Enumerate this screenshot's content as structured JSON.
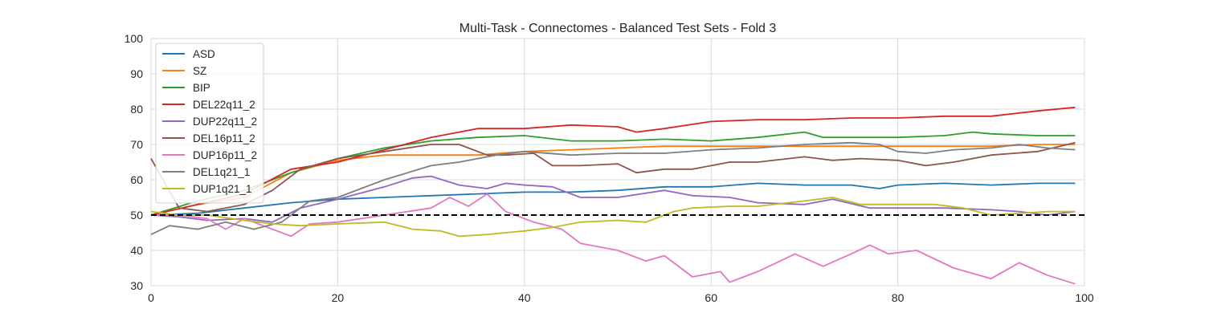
{
  "chart_data": {
    "type": "line",
    "title": "Multi-Task - Connectomes - Balanced Test Sets - Fold 3",
    "xlabel": "",
    "ylabel": "",
    "xlim": [
      0,
      100
    ],
    "ylim": [
      30,
      100
    ],
    "xticks": [
      "0",
      "20",
      "40",
      "60",
      "80",
      "100"
    ],
    "yticks": [
      "30",
      "40",
      "50",
      "60",
      "70",
      "80",
      "90",
      "100"
    ],
    "grid": true,
    "legend_position": "upper-left",
    "reference_line": {
      "y": 50,
      "style": "dashed",
      "color": "#000000"
    },
    "series": [
      {
        "name": "ASD",
        "color": "#1f77b4",
        "points": [
          [
            0,
            50
          ],
          [
            5,
            50.5
          ],
          [
            10,
            52
          ],
          [
            15,
            53.5
          ],
          [
            20,
            54.5
          ],
          [
            25,
            55
          ],
          [
            30,
            55.5
          ],
          [
            35,
            56
          ],
          [
            40,
            56.5
          ],
          [
            45,
            56.5
          ],
          [
            50,
            57
          ],
          [
            55,
            58
          ],
          [
            60,
            58
          ],
          [
            65,
            59
          ],
          [
            70,
            58.5
          ],
          [
            75,
            58.5
          ],
          [
            78,
            57.5
          ],
          [
            80,
            58.5
          ],
          [
            85,
            59
          ],
          [
            90,
            58.5
          ],
          [
            95,
            59
          ],
          [
            99,
            59
          ]
        ]
      },
      {
        "name": "SZ",
        "color": "#ff7f0e",
        "points": [
          [
            0,
            50
          ],
          [
            5,
            53
          ],
          [
            10,
            55
          ],
          [
            15,
            62
          ],
          [
            20,
            65.5
          ],
          [
            25,
            67
          ],
          [
            30,
            67
          ],
          [
            35,
            67
          ],
          [
            40,
            68
          ],
          [
            45,
            68.5
          ],
          [
            50,
            69
          ],
          [
            55,
            69.5
          ],
          [
            60,
            69.5
          ],
          [
            65,
            69.5
          ],
          [
            70,
            69.5
          ],
          [
            75,
            69.5
          ],
          [
            80,
            69.5
          ],
          [
            85,
            69.5
          ],
          [
            90,
            69.5
          ],
          [
            95,
            70
          ],
          [
            99,
            70
          ]
        ]
      },
      {
        "name": "BIP",
        "color": "#2ca02c",
        "points": [
          [
            0,
            50
          ],
          [
            5,
            54
          ],
          [
            10,
            57
          ],
          [
            15,
            62
          ],
          [
            20,
            66
          ],
          [
            25,
            69
          ],
          [
            30,
            71
          ],
          [
            35,
            72
          ],
          [
            40,
            72.5
          ],
          [
            45,
            71
          ],
          [
            50,
            71
          ],
          [
            55,
            71.5
          ],
          [
            60,
            71
          ],
          [
            65,
            72
          ],
          [
            70,
            73.5
          ],
          [
            72,
            72
          ],
          [
            75,
            72
          ],
          [
            80,
            72
          ],
          [
            85,
            72.5
          ],
          [
            88,
            73.5
          ],
          [
            90,
            73
          ],
          [
            95,
            72.5
          ],
          [
            99,
            72.5
          ]
        ]
      },
      {
        "name": "DEL22q11_2",
        "color": "#d62728",
        "points": [
          [
            0,
            50
          ],
          [
            5,
            53
          ],
          [
            10,
            56
          ],
          [
            15,
            63
          ],
          [
            20,
            65
          ],
          [
            25,
            68.5
          ],
          [
            30,
            72
          ],
          [
            35,
            74.5
          ],
          [
            40,
            74.5
          ],
          [
            45,
            75.5
          ],
          [
            50,
            75
          ],
          [
            52,
            73.5
          ],
          [
            55,
            74.5
          ],
          [
            60,
            76.5
          ],
          [
            65,
            77
          ],
          [
            70,
            77
          ],
          [
            75,
            77.5
          ],
          [
            80,
            77.5
          ],
          [
            85,
            78
          ],
          [
            90,
            78
          ],
          [
            95,
            79.5
          ],
          [
            99,
            80.5
          ]
        ]
      },
      {
        "name": "DUP22q11_2",
        "color": "#9467bd",
        "points": [
          [
            0,
            50
          ],
          [
            3,
            49.5
          ],
          [
            6,
            48.5
          ],
          [
            10,
            49
          ],
          [
            13,
            48
          ],
          [
            16,
            52
          ],
          [
            20,
            54.5
          ],
          [
            25,
            58
          ],
          [
            28,
            60.5
          ],
          [
            30,
            61
          ],
          [
            33,
            58.5
          ],
          [
            36,
            57.5
          ],
          [
            38,
            59
          ],
          [
            40,
            58.5
          ],
          [
            43,
            58
          ],
          [
            46,
            55
          ],
          [
            50,
            55
          ],
          [
            55,
            57
          ],
          [
            58,
            55.5
          ],
          [
            62,
            55
          ],
          [
            65,
            53.5
          ],
          [
            70,
            53
          ],
          [
            73,
            54.5
          ],
          [
            77,
            52
          ],
          [
            80,
            52
          ],
          [
            85,
            52
          ],
          [
            90,
            51.5
          ],
          [
            93,
            51
          ],
          [
            96,
            50
          ],
          [
            99,
            51
          ]
        ]
      },
      {
        "name": "DEL16p11_2",
        "color": "#8c564b",
        "points": [
          [
            0,
            66
          ],
          [
            3,
            52
          ],
          [
            6,
            51
          ],
          [
            10,
            53
          ],
          [
            13,
            57
          ],
          [
            16,
            63
          ],
          [
            20,
            66
          ],
          [
            25,
            68
          ],
          [
            30,
            70
          ],
          [
            33,
            70
          ],
          [
            36,
            67
          ],
          [
            38,
            67
          ],
          [
            41,
            67.5
          ],
          [
            43,
            64
          ],
          [
            46,
            64
          ],
          [
            50,
            64.5
          ],
          [
            52,
            62
          ],
          [
            55,
            63
          ],
          [
            58,
            63
          ],
          [
            62,
            65
          ],
          [
            65,
            65
          ],
          [
            70,
            66.5
          ],
          [
            73,
            65.5
          ],
          [
            76,
            66
          ],
          [
            80,
            65.5
          ],
          [
            83,
            64
          ],
          [
            86,
            65
          ],
          [
            90,
            67
          ],
          [
            95,
            68
          ],
          [
            99,
            70.5
          ]
        ]
      },
      {
        "name": "DUP16p11_2",
        "color": "#e377c2",
        "points": [
          [
            0,
            50
          ],
          [
            3,
            50
          ],
          [
            6,
            49
          ],
          [
            8,
            46
          ],
          [
            10,
            49
          ],
          [
            12,
            47
          ],
          [
            15,
            44
          ],
          [
            17,
            47.5
          ],
          [
            20,
            48
          ],
          [
            25,
            50
          ],
          [
            30,
            52
          ],
          [
            32,
            55
          ],
          [
            34,
            52.5
          ],
          [
            36,
            56
          ],
          [
            38,
            51
          ],
          [
            41,
            48
          ],
          [
            44,
            46
          ],
          [
            46,
            42
          ],
          [
            50,
            40
          ],
          [
            53,
            37
          ],
          [
            55,
            38.5
          ],
          [
            58,
            32.5
          ],
          [
            61,
            34
          ],
          [
            62,
            31
          ],
          [
            65,
            34
          ],
          [
            69,
            39
          ],
          [
            72,
            35.5
          ],
          [
            75,
            39
          ],
          [
            77,
            41.5
          ],
          [
            79,
            39
          ],
          [
            82,
            40
          ],
          [
            86,
            35
          ],
          [
            90,
            32
          ],
          [
            93,
            36.5
          ],
          [
            96,
            33
          ],
          [
            99,
            30.5
          ]
        ]
      },
      {
        "name": "DEL1q21_1",
        "color": "#7f7f7f",
        "points": [
          [
            0,
            44.5
          ],
          [
            2,
            47
          ],
          [
            5,
            46
          ],
          [
            8,
            48
          ],
          [
            11,
            46
          ],
          [
            14,
            48
          ],
          [
            17,
            54
          ],
          [
            20,
            55
          ],
          [
            25,
            60
          ],
          [
            30,
            64
          ],
          [
            33,
            65
          ],
          [
            37,
            67
          ],
          [
            40,
            68
          ],
          [
            45,
            67
          ],
          [
            50,
            67.5
          ],
          [
            55,
            67.5
          ],
          [
            60,
            68.5
          ],
          [
            65,
            69
          ],
          [
            70,
            70
          ],
          [
            75,
            70.5
          ],
          [
            78,
            70
          ],
          [
            80,
            68
          ],
          [
            83,
            67.5
          ],
          [
            86,
            68.5
          ],
          [
            90,
            69
          ],
          [
            93,
            70
          ],
          [
            96,
            69
          ],
          [
            99,
            68.5
          ]
        ]
      },
      {
        "name": "DUP1q21_1",
        "color": "#bcbd22",
        "points": [
          [
            0,
            51
          ],
          [
            3,
            50
          ],
          [
            6,
            50
          ],
          [
            10,
            48.5
          ],
          [
            13,
            47.5
          ],
          [
            16,
            47
          ],
          [
            20,
            47.5
          ],
          [
            25,
            48
          ],
          [
            28,
            46
          ],
          [
            31,
            45.5
          ],
          [
            33,
            44
          ],
          [
            36,
            44.5
          ],
          [
            40,
            45.5
          ],
          [
            43,
            46.5
          ],
          [
            46,
            48
          ],
          [
            50,
            48.5
          ],
          [
            53,
            48
          ],
          [
            56,
            51
          ],
          [
            58,
            52
          ],
          [
            62,
            52.5
          ],
          [
            65,
            52.5
          ],
          [
            70,
            54
          ],
          [
            73,
            55
          ],
          [
            76,
            53
          ],
          [
            80,
            53
          ],
          [
            84,
            53
          ],
          [
            87,
            52
          ],
          [
            90,
            50
          ],
          [
            93,
            50.5
          ],
          [
            96,
            51
          ],
          [
            99,
            51
          ]
        ]
      }
    ]
  }
}
